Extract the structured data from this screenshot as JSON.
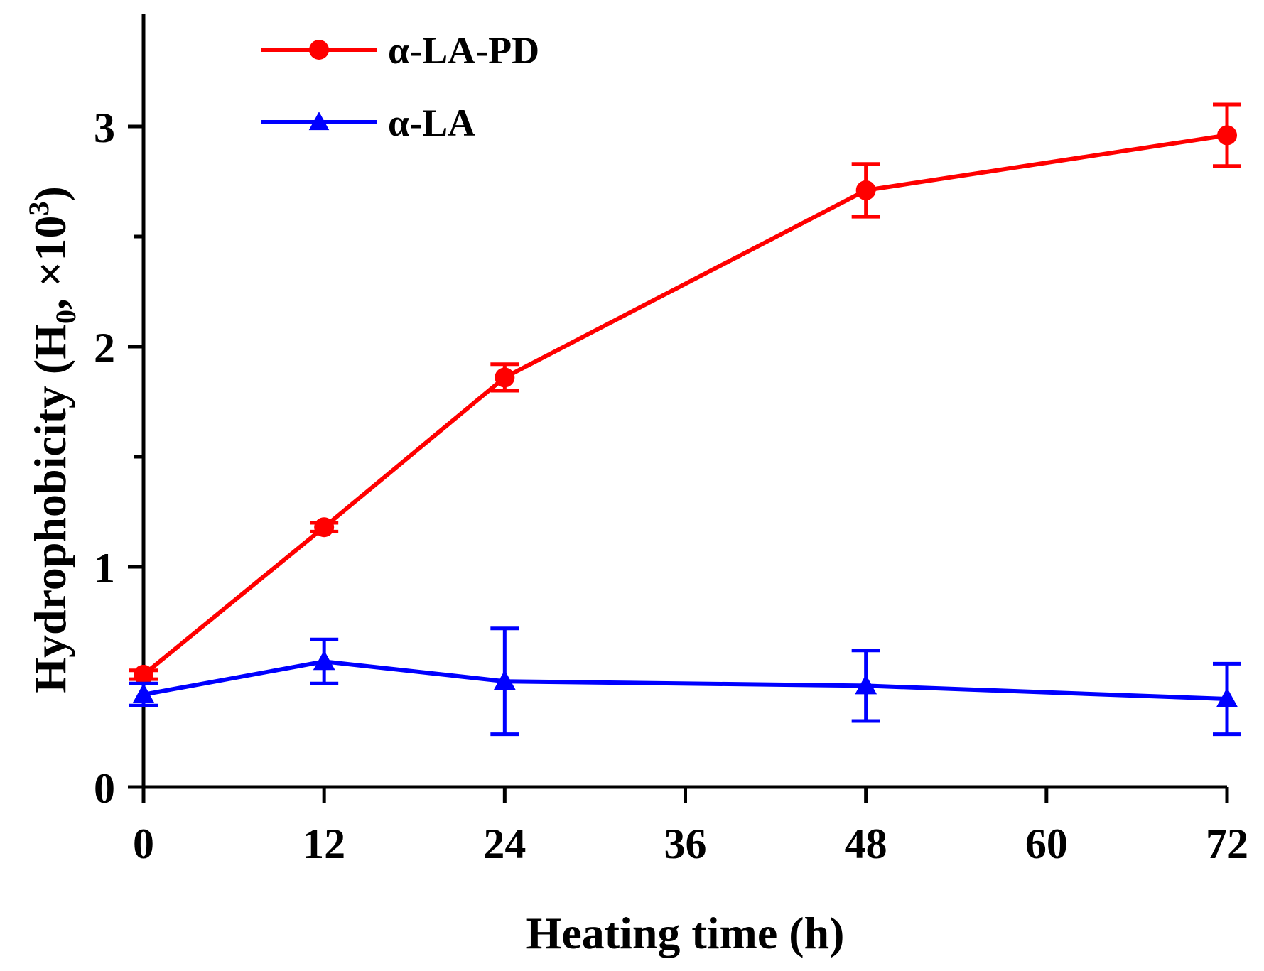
{
  "chart_data": {
    "type": "line",
    "title": "",
    "xlabel": "Heating time (h)",
    "ylabel": {
      "main": "Hydrophobicity (H",
      "sub": "0",
      "mid": ", ×10",
      "sup": "3",
      "end": ")"
    },
    "xlim": [
      0,
      72
    ],
    "ylim": [
      0,
      3.5
    ],
    "xticks": [
      0,
      12,
      24,
      36,
      48,
      60,
      72
    ],
    "xtick_labels": [
      "0",
      "12",
      "24",
      "36",
      "48",
      "60",
      "72"
    ],
    "yticks": [
      0,
      1,
      2,
      3
    ],
    "ytick_labels": [
      "0",
      "1",
      "2",
      "3"
    ],
    "y_minor_ticks": [
      0.5,
      1.5,
      2.5
    ],
    "legend_position": "top-left",
    "series": [
      {
        "name": "α-LA-PD",
        "color": "#ff0000",
        "marker": "circle",
        "x": [
          0,
          12,
          24,
          48,
          72
        ],
        "y": [
          0.51,
          1.18,
          1.86,
          2.71,
          2.96
        ],
        "error": [
          0.02,
          0.02,
          0.06,
          0.12,
          0.14
        ]
      },
      {
        "name": "α-LA",
        "color": "#0000ff",
        "marker": "triangle",
        "x": [
          0,
          12,
          24,
          48,
          72
        ],
        "y": [
          0.42,
          0.57,
          0.48,
          0.46,
          0.4
        ],
        "error": [
          0.05,
          0.1,
          0.24,
          0.16,
          0.16
        ]
      }
    ]
  }
}
